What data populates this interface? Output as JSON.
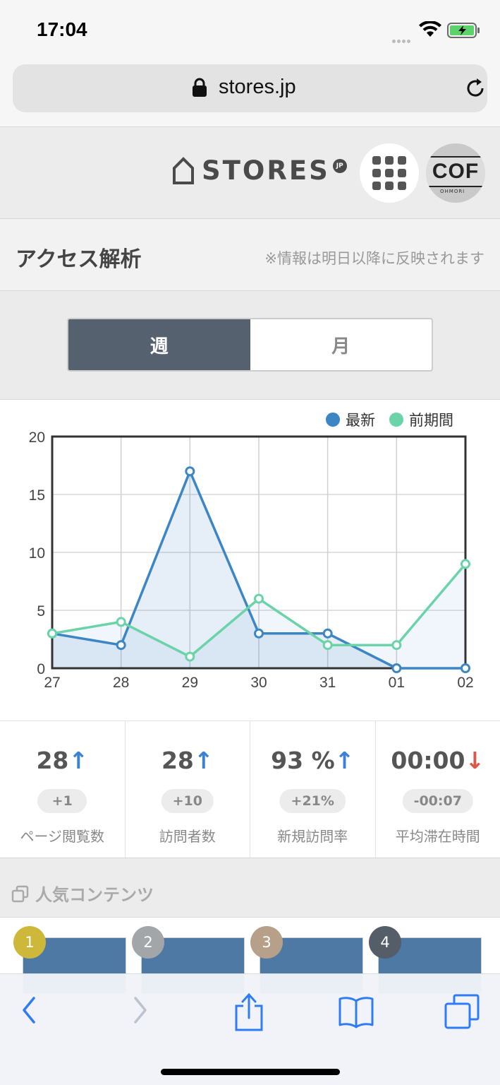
{
  "status": {
    "time": "17:04"
  },
  "browser": {
    "url": "stores.jp"
  },
  "header": {
    "logo_text": "STORES",
    "logo_badge": "JP",
    "avatar_text": "COF",
    "avatar_sub": "OHMORI"
  },
  "page": {
    "title": "アクセス解析",
    "notice": "※情報は明日以降に反映されます"
  },
  "tabs": [
    {
      "label": "週",
      "active": true
    },
    {
      "label": "月",
      "active": false
    }
  ],
  "colors": {
    "latest": "#3d86c6",
    "previous": "#6bd3a8",
    "accent_up": "#3b82d6",
    "accent_down": "#e0554a",
    "segment_active": "#566170"
  },
  "chart_data": {
    "type": "line",
    "categories": [
      "27",
      "28",
      "29",
      "30",
      "31",
      "01",
      "02"
    ],
    "series": [
      {
        "name": "最新",
        "values": [
          3,
          2,
          17,
          3,
          3,
          0,
          0
        ]
      },
      {
        "name": "前期間",
        "values": [
          3,
          4,
          1,
          6,
          2,
          2,
          9
        ]
      }
    ],
    "ylim": [
      0,
      20
    ],
    "yticks": [
      0,
      5,
      10,
      15,
      20
    ],
    "grid": true,
    "legend": "top-right"
  },
  "stats": [
    {
      "value": "28",
      "trend": "up",
      "delta": "+1",
      "label": "ページ閲覧数"
    },
    {
      "value": "28",
      "trend": "up",
      "delta": "+10",
      "label": "訪問者数"
    },
    {
      "value": "93 %",
      "trend": "up",
      "delta": "+21%",
      "label": "新規訪問率"
    },
    {
      "value": "00:00",
      "trend": "down",
      "delta": "-00:07",
      "label": "平均滞在時間"
    }
  ],
  "popular": {
    "title": "人気コンテンツ",
    "items": [
      {
        "rank": "1",
        "color": "#cdb83a"
      },
      {
        "rank": "2",
        "color": "#a3a6a9"
      },
      {
        "rank": "3",
        "color": "#b7a089"
      },
      {
        "rank": "4",
        "color": "#545d68"
      }
    ]
  }
}
